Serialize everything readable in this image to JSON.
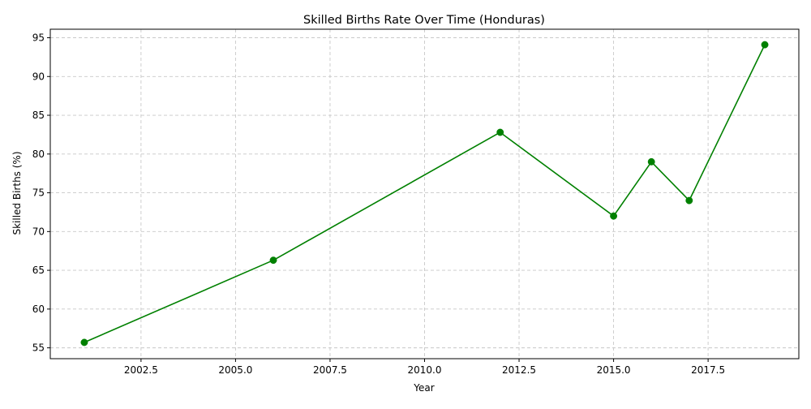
{
  "chart_data": {
    "type": "line",
    "title": "Skilled Births Rate Over Time (Honduras)",
    "xlabel": "Year",
    "ylabel": "Skilled Births (%)",
    "xlim": [
      2000.1,
      2019.9
    ],
    "ylim": [
      53.6,
      96.1
    ],
    "xticks": [
      2002.5,
      2005.0,
      2007.5,
      2010.0,
      2012.5,
      2015.0,
      2017.5
    ],
    "xtick_labels": [
      "2002.5",
      "2005.0",
      "2007.5",
      "2010.0",
      "2012.5",
      "2015.0",
      "2017.5"
    ],
    "yticks": [
      55,
      60,
      65,
      70,
      75,
      80,
      85,
      90,
      95
    ],
    "ytick_labels": [
      "55",
      "60",
      "65",
      "70",
      "75",
      "80",
      "85",
      "90",
      "95"
    ],
    "grid": true,
    "series": [
      {
        "color": "#008000",
        "marker": "circle",
        "x": [
          2001,
          2006,
          2012,
          2015,
          2016,
          2017,
          2019
        ],
        "y": [
          55.7,
          66.3,
          82.8,
          72.0,
          79.0,
          74.0,
          94.1
        ]
      }
    ]
  }
}
